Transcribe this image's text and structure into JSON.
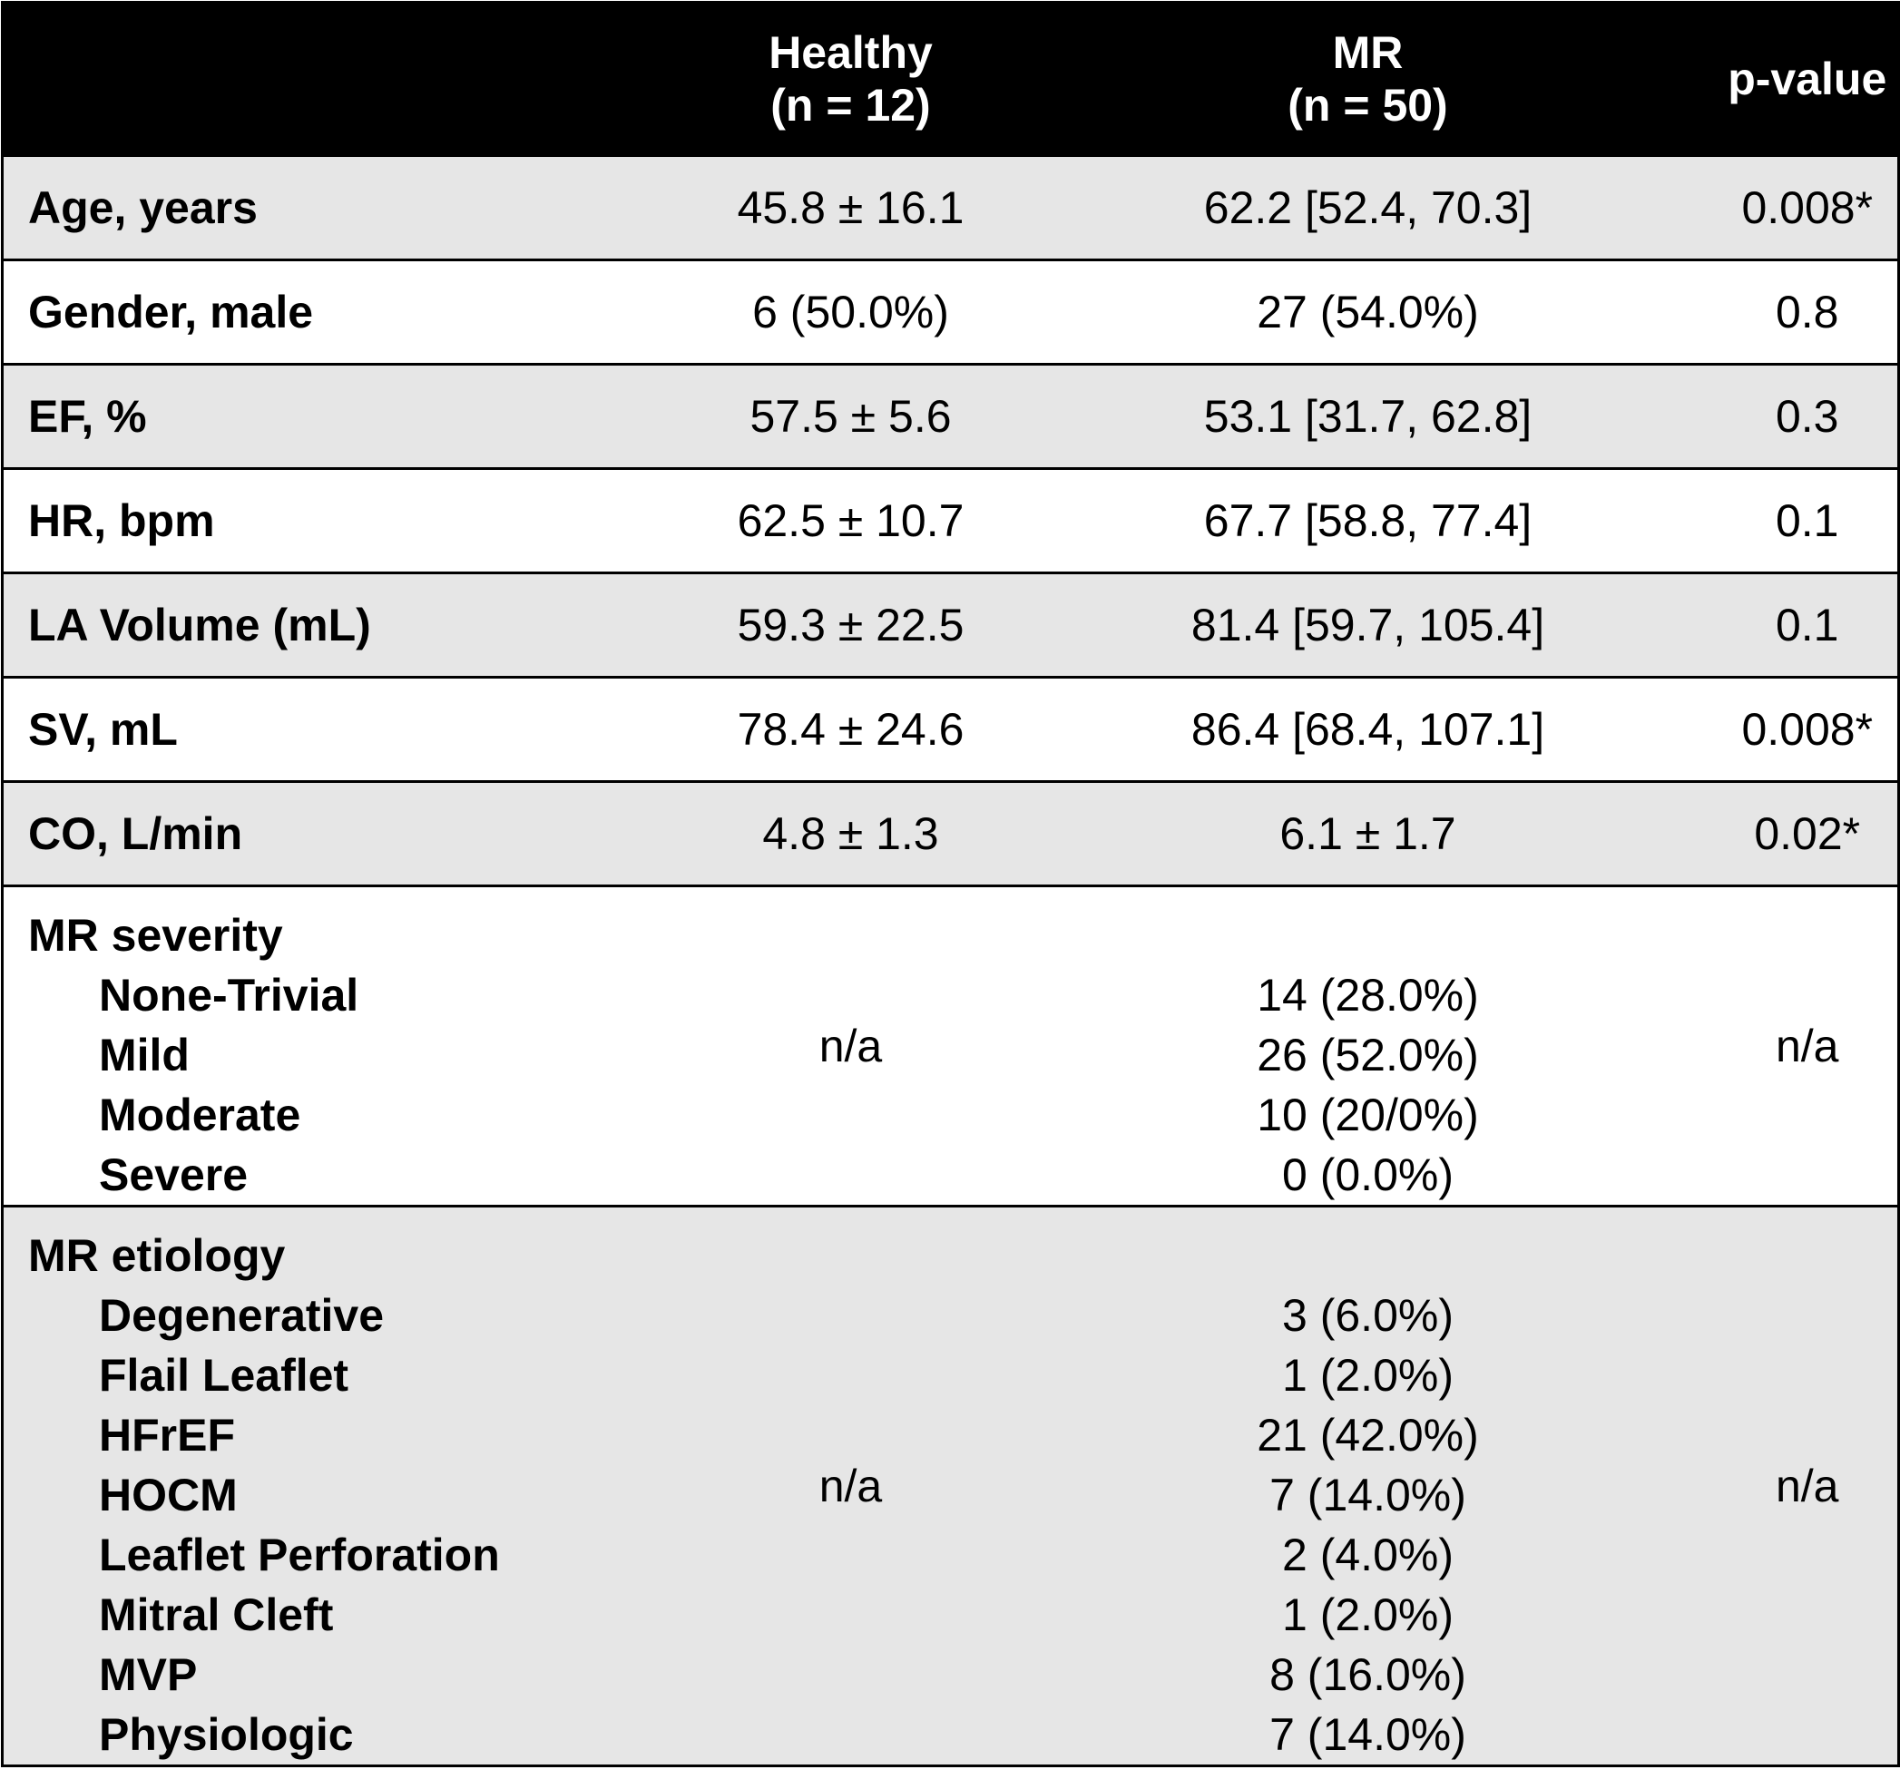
{
  "header": {
    "col1": "",
    "healthy_line1": "Healthy",
    "healthy_line2": "(n = 12)",
    "mr_line1": "MR",
    "mr_line2": "(n = 50)",
    "pvalue": "p-value"
  },
  "rows": [
    {
      "label": "Age, years",
      "healthy": "45.8 ± 16.1",
      "mr": "62.2 [52.4, 70.3]",
      "p": "0.008*"
    },
    {
      "label": "Gender, male",
      "healthy": "6 (50.0%)",
      "mr": "27 (54.0%)",
      "p": "0.8"
    },
    {
      "label": "EF, %",
      "healthy": "57.5 ± 5.6",
      "mr": "53.1 [31.7, 62.8]",
      "p": "0.3"
    },
    {
      "label": "HR, bpm",
      "healthy": "62.5 ± 10.7",
      "mr": "67.7 [58.8, 77.4]",
      "p": "0.1"
    },
    {
      "label": "LA Volume (mL)",
      "healthy": "59.3 ± 22.5",
      "mr": "81.4 [59.7, 105.4]",
      "p": "0.1"
    },
    {
      "label": "SV, mL",
      "healthy": "78.4 ± 24.6",
      "mr": "86.4 [68.4, 107.1]",
      "p": "0.008*"
    },
    {
      "label": "CO, L/min",
      "healthy": "4.8 ± 1.3",
      "mr": "6.1 ± 1.7",
      "p": "0.02*"
    }
  ],
  "severity": {
    "title": "MR severity",
    "healthy": "n/a",
    "p": "n/a",
    "items": [
      {
        "label": "None-Trivial",
        "mr": "14 (28.0%)"
      },
      {
        "label": "Mild",
        "mr": "26 (52.0%)"
      },
      {
        "label": "Moderate",
        "mr": "10 (20/0%)"
      },
      {
        "label": "Severe",
        "mr": "0 (0.0%)"
      }
    ]
  },
  "etiology": {
    "title": "MR etiology",
    "healthy": "n/a",
    "p": "n/a",
    "items": [
      {
        "label": "Degenerative",
        "mr": "3 (6.0%)"
      },
      {
        "label": "Flail Leaflet",
        "mr": "1 (2.0%)"
      },
      {
        "label": "HFrEF",
        "mr": "21 (42.0%)"
      },
      {
        "label": "HOCM",
        "mr": "7 (14.0%)"
      },
      {
        "label": "Leaflet Perforation",
        "mr": "2 (4.0%)"
      },
      {
        "label": "Mitral Cleft",
        "mr": "1 (2.0%)"
      },
      {
        "label": "MVP",
        "mr": "8 (16.0%)"
      },
      {
        "label": "Physiologic",
        "mr": "7 (14.0%)"
      }
    ]
  }
}
